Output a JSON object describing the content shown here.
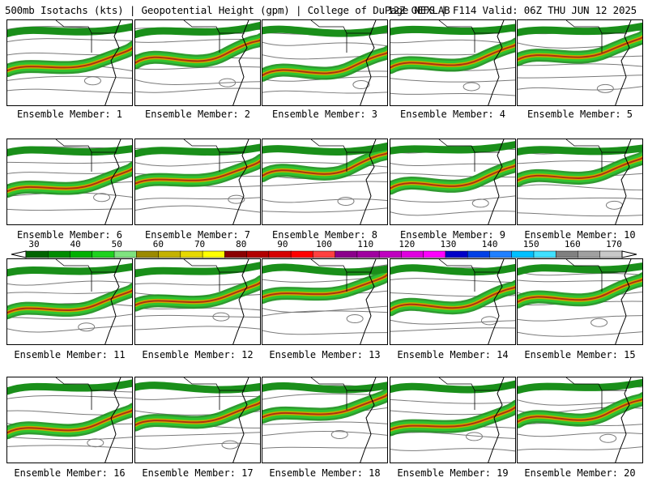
{
  "header": {
    "title": "500mb Isotachs (kts) | Geopotential Height (gpm) | College of DuPage NEXLAB",
    "run": "12Z GEFS | F114 Valid: 06Z THU JUN 12 2025"
  },
  "colorbar": {
    "ticks": [
      "30",
      "40",
      "50",
      "60",
      "70",
      "80",
      "90",
      "100",
      "110",
      "120",
      "130",
      "140",
      "150",
      "160",
      "170"
    ],
    "colors": [
      "#006400",
      "#008c00",
      "#00b000",
      "#1ed21e",
      "#7fe37f",
      "#9b8a00",
      "#c4b200",
      "#e6d800",
      "#ffff00",
      "#8b0000",
      "#b20000",
      "#d60000",
      "#ff0000",
      "#ff4040",
      "#8b008b",
      "#a000a0",
      "#c000c0",
      "#e000e0",
      "#ff00ff",
      "#0000c8",
      "#0040e6",
      "#2080ff",
      "#00c0ff",
      "#40e0ff",
      "#808080",
      "#a0a0a0",
      "#c8c8c8"
    ]
  },
  "panels": [
    {
      "label": "Ensemble Member: 1"
    },
    {
      "label": "Ensemble Member: 2"
    },
    {
      "label": "Ensemble Member: 3"
    },
    {
      "label": "Ensemble Member: 4"
    },
    {
      "label": "Ensemble Member: 5"
    },
    {
      "label": "Ensemble Member: 6"
    },
    {
      "label": "Ensemble Member: 7"
    },
    {
      "label": "Ensemble Member: 8"
    },
    {
      "label": "Ensemble Member: 9"
    },
    {
      "label": "Ensemble Member: 10"
    },
    {
      "label": "Ensemble Member: 11"
    },
    {
      "label": "Ensemble Member: 12"
    },
    {
      "label": "Ensemble Member: 13"
    },
    {
      "label": "Ensemble Member: 14"
    },
    {
      "label": "Ensemble Member: 15"
    },
    {
      "label": "Ensemble Member: 16"
    },
    {
      "label": "Ensemble Member: 17"
    },
    {
      "label": "Ensemble Member: 18"
    },
    {
      "label": "Ensemble Member: 19"
    },
    {
      "label": "Ensemble Member: 20"
    }
  ],
  "style": {
    "jet_colors": [
      "#1a8f1a",
      "#2fc42f",
      "#c8a800",
      "#b03010"
    ],
    "contour_color": "#7a7a7a",
    "coast_color": "#000000"
  }
}
